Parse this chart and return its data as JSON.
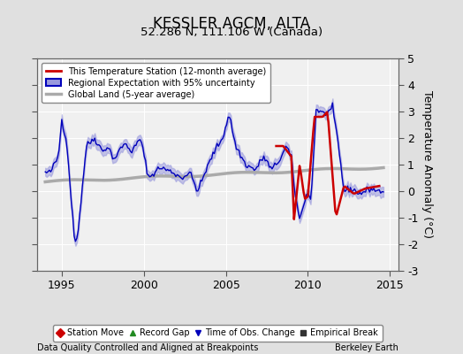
{
  "title": "KESSLER AGCM, ALTA",
  "subtitle": "52.286 N, 111.106 W (Canada)",
  "xlabel_left": "Data Quality Controlled and Aligned at Breakpoints",
  "xlabel_right": "Berkeley Earth",
  "ylabel": "Temperature Anomaly (°C)",
  "xlim": [
    1993.5,
    2015.5
  ],
  "ylim": [
    -3,
    5
  ],
  "yticks": [
    -3,
    -2,
    -1,
    0,
    1,
    2,
    3,
    4,
    5
  ],
  "xticks": [
    1995,
    2000,
    2005,
    2010,
    2015
  ],
  "bg_color": "#e0e0e0",
  "plot_bg_color": "#f0f0f0",
  "grid_color": "#ffffff",
  "station_line_color": "#cc0000",
  "regional_line_color": "#0000bb",
  "regional_fill_color": "#9999dd",
  "global_line_color": "#aaaaaa",
  "legend_items": [
    {
      "label": "This Temperature Station (12-month average)",
      "color": "#cc0000",
      "lw": 2
    },
    {
      "label": "Regional Expectation with 95% uncertainty",
      "color": "#0000bb",
      "lw": 2
    },
    {
      "label": "Global Land (5-year average)",
      "color": "#aaaaaa",
      "lw": 3
    }
  ],
  "bottom_legend": [
    {
      "label": "Station Move",
      "color": "#cc0000",
      "marker": "D"
    },
    {
      "label": "Record Gap",
      "color": "#228B22",
      "marker": "^"
    },
    {
      "label": "Time of Obs. Change",
      "color": "#0000bb",
      "marker": "v"
    },
    {
      "label": "Empirical Break",
      "color": "#333333",
      "marker": "s"
    }
  ]
}
